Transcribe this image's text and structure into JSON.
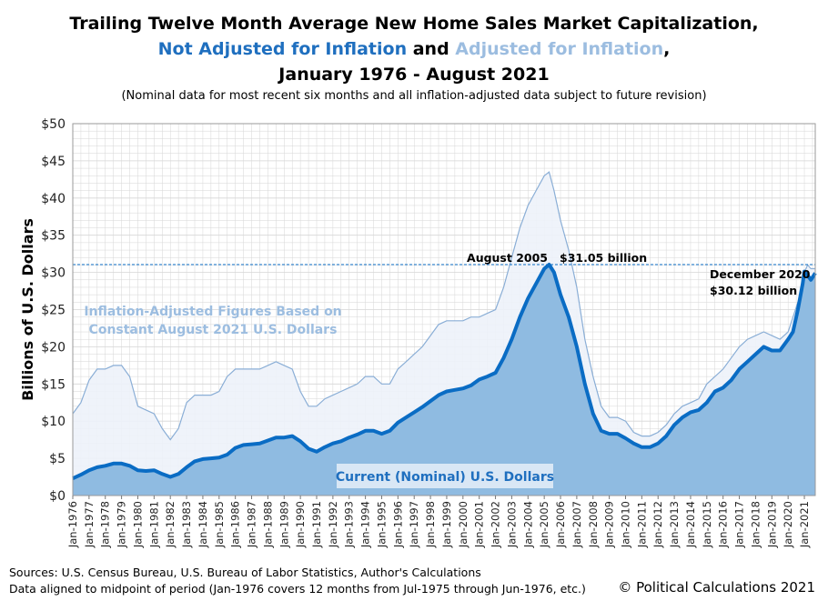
{
  "title": {
    "line1": "Trailing Twelve Month Average New Home Sales Market Capitalization,",
    "line2_a": "Not Adjusted for Inflation",
    "line2_b": " and ",
    "line2_c": "Adjusted for Inflation",
    "line2_d": ",",
    "line3": "January 1976 - August 2021",
    "subtitle": "(Nominal data for most recent six months and all inflation-adjusted data subject to future revision)"
  },
  "colors": {
    "nominal_line": "#0a6cc4",
    "nominal_fill": "#8fbbe1",
    "real_line": "#8aaed6",
    "real_fill": "#edf2f9",
    "grid": "#d6d6d6"
  },
  "chart_data": {
    "type": "area",
    "ylabel": "Billions of U.S. Dollars",
    "xlabel": "",
    "ylim": [
      0,
      50
    ],
    "yticks": [
      0,
      5,
      10,
      15,
      20,
      25,
      30,
      35,
      40,
      45,
      50
    ],
    "ytick_labels": [
      "$0",
      "$5",
      "$10",
      "$15",
      "$20",
      "$25",
      "$30",
      "$35",
      "$40",
      "$45",
      "$50"
    ],
    "xrange_years": [
      1976.0,
      2021.67
    ],
    "xtick_labels": [
      "Jan-1976",
      "Jan-1977",
      "Jan-1978",
      "Jan-1979",
      "Jan-1980",
      "Jan-1981",
      "Jan-1982",
      "Jan-1983",
      "Jan-1984",
      "Jan-1985",
      "Jan-1986",
      "Jan-1987",
      "Jan-1988",
      "Jan-1989",
      "Jan-1990",
      "Jan-1991",
      "Jan-1992",
      "Jan-1993",
      "Jan-1994",
      "Jan-1995",
      "Jan-1996",
      "Jan-1997",
      "Jan-1998",
      "Jan-1999",
      "Jan-2000",
      "Jan-2001",
      "Jan-2002",
      "Jan-2003",
      "Jan-2004",
      "Jan-2005",
      "Jan-2006",
      "Jan-2007",
      "Jan-2008",
      "Jan-2009",
      "Jan-2010",
      "Jan-2011",
      "Jan-2012",
      "Jan-2013",
      "Jan-2014",
      "Jan-2015",
      "Jan-2016",
      "Jan-2017",
      "Jan-2018",
      "Jan-2019",
      "Jan-2020",
      "Jan-2021"
    ],
    "series": [
      {
        "name": "Adjusted for Inflation",
        "x": [
          1976.0,
          1976.5,
          1977.0,
          1977.5,
          1978.0,
          1978.5,
          1979.0,
          1979.5,
          1980.0,
          1980.5,
          1981.0,
          1981.5,
          1982.0,
          1982.5,
          1983.0,
          1983.5,
          1984.0,
          1984.5,
          1985.0,
          1985.5,
          1986.0,
          1986.5,
          1987.0,
          1987.5,
          1988.0,
          1988.5,
          1989.0,
          1989.5,
          1990.0,
          1990.5,
          1991.0,
          1991.5,
          1992.0,
          1992.5,
          1993.0,
          1993.5,
          1994.0,
          1994.5,
          1995.0,
          1995.5,
          1996.0,
          1996.5,
          1997.0,
          1997.5,
          1998.0,
          1998.5,
          1999.0,
          1999.5,
          2000.0,
          2000.5,
          2001.0,
          2001.5,
          2002.0,
          2002.5,
          2003.0,
          2003.5,
          2004.0,
          2004.5,
          2005.0,
          2005.3,
          2005.6,
          2006.0,
          2006.5,
          2007.0,
          2007.5,
          2008.0,
          2008.5,
          2009.0,
          2009.5,
          2010.0,
          2010.5,
          2011.0,
          2011.5,
          2012.0,
          2012.5,
          2013.0,
          2013.5,
          2014.0,
          2014.5,
          2015.0,
          2015.5,
          2016.0,
          2016.5,
          2017.0,
          2017.5,
          2018.0,
          2018.5,
          2019.0,
          2019.5,
          2020.0,
          2020.3,
          2020.6,
          2020.9,
          2021.0,
          2021.2,
          2021.4,
          2021.67
        ],
        "values": [
          11,
          12.5,
          15.5,
          17,
          17,
          17.5,
          17.5,
          16,
          12,
          11.5,
          11,
          9,
          7.5,
          9,
          12.5,
          13.5,
          13.5,
          13.5,
          14,
          16,
          17,
          17,
          17,
          17,
          17.5,
          18,
          17.5,
          17,
          14,
          12,
          12,
          13,
          13.5,
          14,
          14.5,
          15,
          16,
          16,
          15,
          15,
          17,
          18,
          19,
          20,
          21.5,
          23,
          23.5,
          23.5,
          23.5,
          24,
          24,
          24.5,
          25,
          28,
          32,
          36,
          39,
          41,
          43,
          43.5,
          41,
          37,
          33,
          28,
          21,
          16,
          12,
          10.5,
          10.5,
          10,
          8.5,
          8,
          8,
          8.5,
          9.5,
          11,
          12,
          12.5,
          13,
          15,
          16,
          17,
          18.5,
          20,
          21,
          21.5,
          22,
          21.5,
          21,
          22,
          24,
          26,
          28,
          30,
          31,
          30.5,
          30.5
        ]
      },
      {
        "name": "Not Adjusted for Inflation",
        "x": [
          1976.0,
          1976.5,
          1977.0,
          1977.5,
          1978.0,
          1978.5,
          1979.0,
          1979.5,
          1980.0,
          1980.5,
          1981.0,
          1981.5,
          1982.0,
          1982.5,
          1983.0,
          1983.5,
          1984.0,
          1984.5,
          1985.0,
          1985.5,
          1986.0,
          1986.5,
          1987.0,
          1987.5,
          1988.0,
          1988.5,
          1989.0,
          1989.5,
          1990.0,
          1990.5,
          1991.0,
          1991.5,
          1992.0,
          1992.5,
          1993.0,
          1993.5,
          1994.0,
          1994.5,
          1995.0,
          1995.5,
          1996.0,
          1996.5,
          1997.0,
          1997.5,
          1998.0,
          1998.5,
          1999.0,
          1999.5,
          2000.0,
          2000.5,
          2001.0,
          2001.5,
          2002.0,
          2002.5,
          2003.0,
          2003.5,
          2004.0,
          2004.5,
          2005.0,
          2005.3,
          2005.6,
          2006.0,
          2006.5,
          2007.0,
          2007.5,
          2008.0,
          2008.5,
          2009.0,
          2009.5,
          2010.0,
          2010.5,
          2011.0,
          2011.5,
          2012.0,
          2012.5,
          2013.0,
          2013.5,
          2014.0,
          2014.5,
          2015.0,
          2015.5,
          2016.0,
          2016.5,
          2017.0,
          2017.5,
          2018.0,
          2018.5,
          2019.0,
          2019.5,
          2020.0,
          2020.3,
          2020.6,
          2020.9,
          2021.0,
          2021.2,
          2021.4,
          2021.67
        ],
        "values": [
          2.3,
          2.8,
          3.4,
          3.8,
          4.0,
          4.3,
          4.3,
          4.0,
          3.4,
          3.3,
          3.4,
          2.9,
          2.5,
          2.9,
          3.8,
          4.6,
          4.9,
          5.0,
          5.1,
          5.5,
          6.4,
          6.8,
          6.9,
          7.0,
          7.4,
          7.8,
          7.8,
          8.0,
          7.3,
          6.3,
          5.9,
          6.5,
          7.0,
          7.3,
          7.8,
          8.2,
          8.7,
          8.7,
          8.3,
          8.7,
          9.8,
          10.5,
          11.2,
          11.9,
          12.7,
          13.5,
          14.0,
          14.2,
          14.4,
          14.8,
          15.6,
          16.0,
          16.5,
          18.5,
          21.0,
          24.0,
          26.5,
          28.5,
          30.5,
          31.05,
          30.0,
          27.0,
          24.0,
          20.0,
          15.0,
          11.0,
          8.7,
          8.3,
          8.3,
          7.7,
          7.0,
          6.5,
          6.5,
          7.0,
          8.0,
          9.5,
          10.5,
          11.2,
          11.5,
          12.5,
          14.0,
          14.5,
          15.5,
          17.0,
          18.0,
          19.0,
          20.0,
          19.5,
          19.5,
          21.0,
          22.0,
          25.0,
          28.5,
          30.12,
          29.6,
          29.0,
          29.9
        ]
      }
    ],
    "reference_line": {
      "value": 31.05,
      "label_date": "August 2005",
      "label_value": "$31.05 billion"
    },
    "annotations": [
      {
        "text": "December 2020",
        "x": 2020.92,
        "y": 30.12
      },
      {
        "text": "$30.12  billion",
        "x": 2020.92,
        "y": 30.12
      }
    ],
    "inflation_label_line1": "Inflation-Adjusted Figures Based on",
    "inflation_label_line2": "Constant August 2021 U.S. Dollars",
    "nominal_label": "Current (Nominal) U.S. Dollars"
  },
  "footer": {
    "sources": "Sources: U.S. Census Bureau, U.S. Bureau of Labor Statistics, Author's Calculations",
    "note": "Data aligned to midpoint of period (Jan-1976 covers 12 months from Jul-1975 through Jun-1976, etc.)",
    "copyright": "© Political Calculations 2021"
  }
}
